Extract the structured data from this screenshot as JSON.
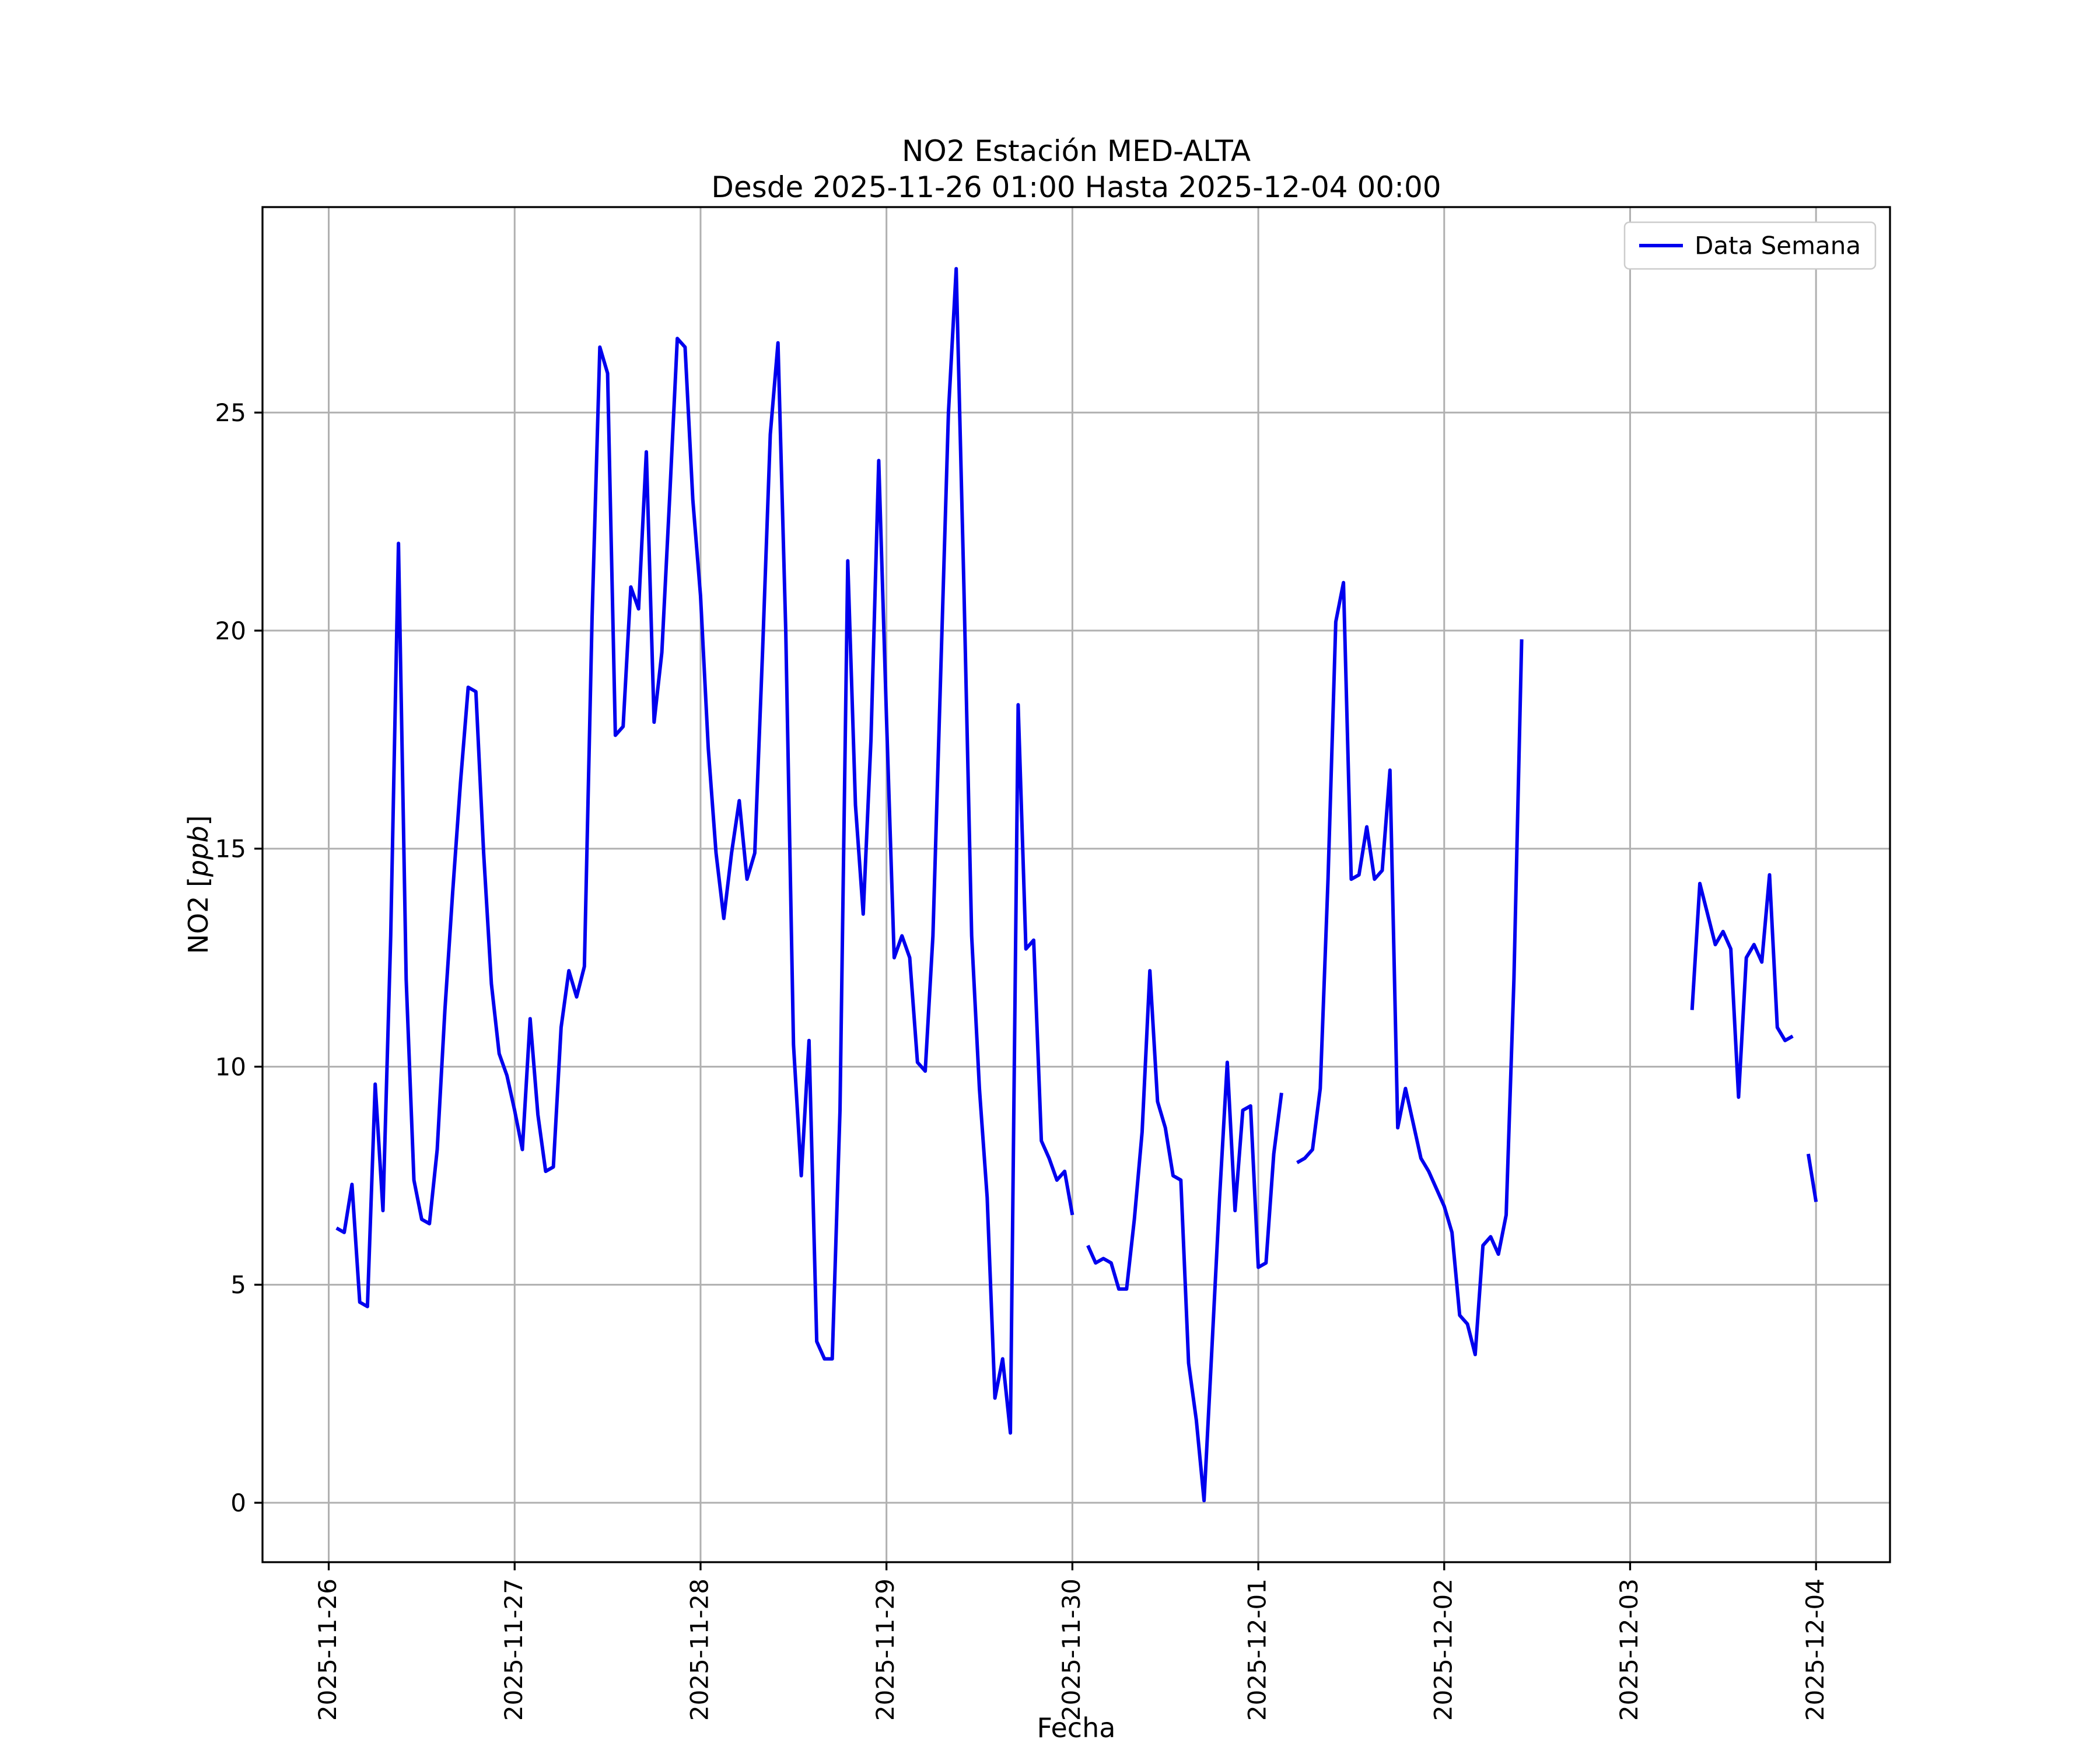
{
  "chart": {
    "title_line1": "NO2 Estación MED-ALTA",
    "title_line2": "Desde 2025-11-26 01:00 Hasta 2025-12-04 00:00",
    "xlabel": "Fecha",
    "ylabel_prefix": "NO2 [",
    "ylabel_italic": "ppb",
    "ylabel_suffix": "]",
    "legend_label": "Data Semana",
    "line_color": "#0000ee",
    "grid_color": "#b0b0b0",
    "spine_color": "#000000",
    "legend_border_color": "#cccccc"
  },
  "chart_data": {
    "type": "line",
    "title": "NO2 Estación MED-ALTA",
    "subtitle": "Desde 2025-11-26 01:00 Hasta 2025-12-04 00:00",
    "xlabel": "Fecha",
    "ylabel": "NO2 [ppb]",
    "legend": [
      "Data Semana"
    ],
    "legend_position": "upper right",
    "grid": true,
    "x_start": "2025-11-26 01:00",
    "x_end": "2025-12-04 00:00",
    "interval_hours": 1,
    "x_tick_labels": [
      "2025-11-26",
      "2025-11-27",
      "2025-11-28",
      "2025-11-29",
      "2025-11-30",
      "2025-12-01",
      "2025-12-02",
      "2025-12-03",
      "2025-12-04"
    ],
    "y_ticks": [
      0,
      5,
      10,
      15,
      20,
      25
    ],
    "ylim_data": [
      0.05,
      28.3
    ],
    "series": [
      {
        "name": "Data Semana",
        "color": "#0000ee",
        "values": [
          6.3,
          6.2,
          7.3,
          4.6,
          4.5,
          9.6,
          6.7,
          13.0,
          22.0,
          12.0,
          7.4,
          6.5,
          6.4,
          8.1,
          11.3,
          14.0,
          16.5,
          18.7,
          18.6,
          14.9,
          11.9,
          10.3,
          9.8,
          9.0,
          8.1,
          11.1,
          8.9,
          7.6,
          7.7,
          10.9,
          12.2,
          11.6,
          12.3,
          20.3,
          26.5,
          25.9,
          17.6,
          17.8,
          21.0,
          20.5,
          24.1,
          17.9,
          19.5,
          23.0,
          26.7,
          26.5,
          23.0,
          20.8,
          17.3,
          14.9,
          13.4,
          14.9,
          16.1,
          14.3,
          14.9,
          19.5,
          24.5,
          26.6,
          20.0,
          10.5,
          7.5,
          10.6,
          3.7,
          3.3,
          3.3,
          9.0,
          21.6,
          16.0,
          13.5,
          17.5,
          23.9,
          18.0,
          12.5,
          13.0,
          12.5,
          10.1,
          9.9,
          13.0,
          19.0,
          25.0,
          28.3,
          21.0,
          13.0,
          9.5,
          7.0,
          2.4,
          3.3,
          1.6,
          18.3,
          12.7,
          12.9,
          8.3,
          7.9,
          7.4,
          7.6,
          6.6,
          null,
          5.9,
          5.5,
          5.6,
          5.5,
          4.9,
          4.9,
          6.5,
          8.5,
          12.2,
          9.2,
          8.6,
          7.5,
          7.4,
          3.2,
          1.9,
          0.05,
          3.5,
          7.0,
          10.1,
          6.7,
          9.0,
          9.1,
          5.4,
          5.5,
          8.0,
          9.4,
          null,
          7.8,
          7.9,
          8.1,
          9.5,
          14.3,
          20.2,
          21.1,
          14.3,
          14.4,
          15.5,
          14.3,
          14.5,
          16.8,
          8.6,
          9.5,
          8.7,
          7.9,
          7.6,
          7.2,
          6.8,
          6.2,
          4.3,
          4.1,
          3.4,
          5.9,
          6.1,
          5.7,
          6.6,
          12.0,
          19.8,
          null,
          null,
          null,
          null,
          null,
          null,
          null,
          null,
          null,
          null,
          null,
          null,
          null,
          null,
          null,
          null,
          null,
          null,
          null,
          null,
          null,
          11.3,
          14.2,
          13.5,
          12.8,
          13.1,
          12.7,
          9.3,
          12.5,
          12.8,
          12.4,
          14.4,
          10.9,
          10.6,
          10.7,
          null,
          8.0,
          6.9
        ]
      }
    ]
  }
}
